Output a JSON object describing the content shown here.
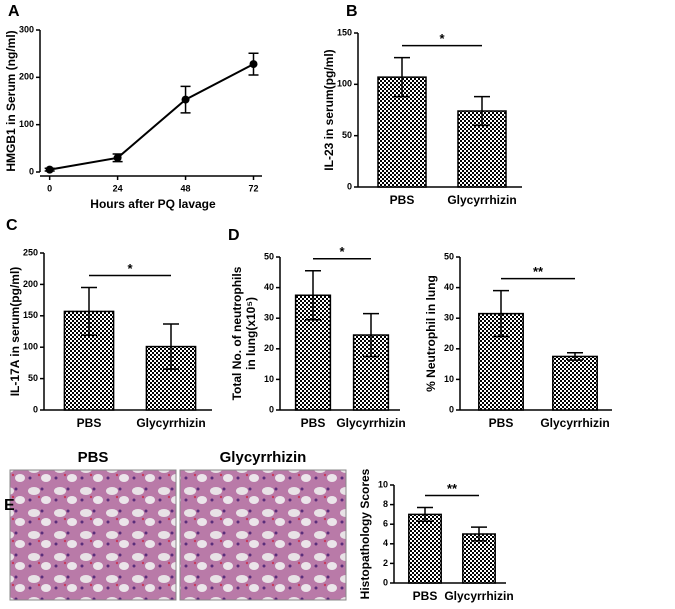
{
  "chart_data": [
    {
      "type": "line",
      "panel": "A",
      "xlabel": "Hours after PQ lavage",
      "ylabel": "HMGB1 in Serum (ng/ml)",
      "x": [
        0,
        24,
        48,
        72
      ],
      "values": [
        5,
        30,
        153,
        228
      ],
      "errors": [
        3,
        8,
        28,
        23
      ],
      "xlim": [
        -2,
        75
      ],
      "xticks": [
        0,
        24,
        48,
        72
      ],
      "ylim": [
        0,
        300
      ],
      "yticks": [
        0,
        100,
        200,
        300
      ]
    },
    {
      "type": "bar",
      "panel": "B",
      "ylabel": "IL-23 in serum(pg/ml)",
      "categories": [
        "PBS",
        "Glycyrrhizin"
      ],
      "values": [
        107,
        74
      ],
      "errors": [
        19,
        14
      ],
      "ylim": [
        0,
        150
      ],
      "yticks": [
        0,
        50,
        100,
        150
      ],
      "annotation": "*"
    },
    {
      "type": "bar",
      "panel": "C",
      "ylabel": "IL-17A in serum(pg/ml)",
      "categories": [
        "PBS",
        "Glycyrrhizin"
      ],
      "values": [
        157,
        101
      ],
      "errors": [
        38,
        36
      ],
      "ylim": [
        0,
        250
      ],
      "yticks": [
        0,
        50,
        100,
        150,
        200,
        250
      ],
      "annotation": "*"
    },
    {
      "type": "bar",
      "panel": "D",
      "ylabel": [
        "Total No. of neutrophils",
        "in lung(x10⁵)"
      ],
      "categories": [
        "PBS",
        "Glycyrrhizin"
      ],
      "values": [
        37.5,
        24.5
      ],
      "errors": [
        8,
        7
      ],
      "ylim": [
        0,
        50
      ],
      "yticks": [
        0,
        10,
        20,
        30,
        40,
        50
      ],
      "annotation": "*"
    },
    {
      "type": "bar",
      "ylabel": "% Neutrophil in lung",
      "categories": [
        "PBS",
        "Glycyrrhizin"
      ],
      "values": [
        31.5,
        17.5
      ],
      "errors": [
        7.5,
        1.2
      ],
      "ylim": [
        0,
        50
      ],
      "yticks": [
        0,
        10,
        20,
        30,
        40,
        50
      ],
      "annotation": "**"
    },
    {
      "type": "bar",
      "ylabel": "Histopathology Scores",
      "categories": [
        "PBS",
        "Glycyrrhizin"
      ],
      "values": [
        7,
        5
      ],
      "errors": [
        0.7,
        0.7
      ],
      "ylim": [
        0,
        10
      ],
      "yticks": [
        0,
        2,
        4,
        6,
        8,
        10
      ],
      "annotation": "**"
    }
  ],
  "histology": {
    "panel": "E",
    "labels": [
      "PBS",
      "Glycyrrhizin"
    ]
  }
}
